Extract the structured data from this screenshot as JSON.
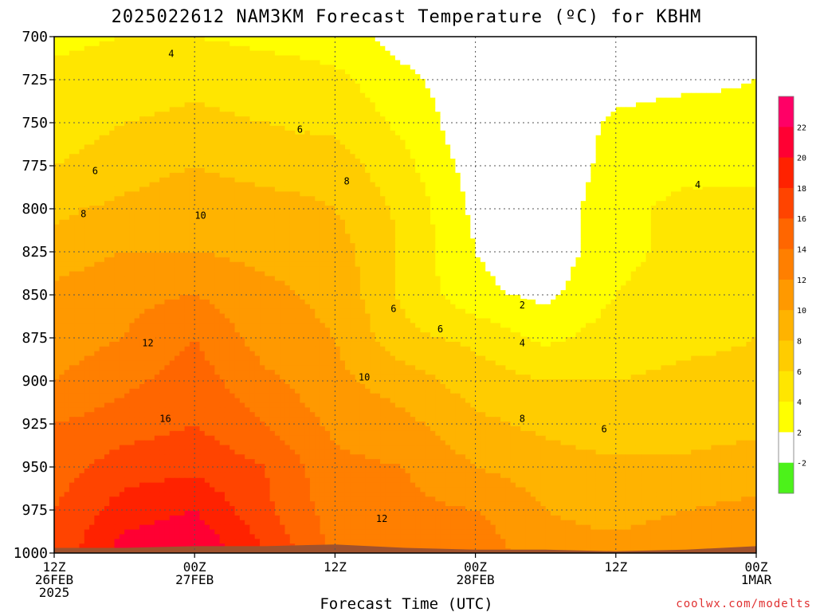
{
  "chart_data": {
    "type": "heatmap",
    "title": "2025022612 NAM3KM Forecast Temperature (ºC) for KBHM",
    "xlabel": "Forecast Time (UTC)",
    "ylabel": "",
    "credit": "coolwx.com/modelts",
    "x_ticks": [
      {
        "hour": 0,
        "line1": "12Z",
        "line2": "26FEB",
        "line3": "2025"
      },
      {
        "hour": 12,
        "line1": "00Z",
        "line2": "27FEB",
        "line3": ""
      },
      {
        "hour": 24,
        "line1": "12Z",
        "line2": "",
        "line3": ""
      },
      {
        "hour": 36,
        "line1": "00Z",
        "line2": "28FEB",
        "line3": ""
      },
      {
        "hour": 48,
        "line1": "12Z",
        "line2": "",
        "line3": ""
      },
      {
        "hour": 60,
        "line1": "00Z",
        "line2": "1MAR",
        "line3": ""
      }
    ],
    "x_range_hours": [
      0,
      60
    ],
    "y_ticks": [
      700,
      725,
      750,
      775,
      800,
      825,
      850,
      875,
      900,
      925,
      950,
      975,
      1000
    ],
    "y_range": [
      700,
      1000
    ],
    "y_inverted": true,
    "grid": true,
    "colorbar": {
      "labels": [
        22,
        20,
        18,
        16,
        14,
        12,
        10,
        8,
        6,
        4,
        2,
        -2
      ],
      "bands": [
        {
          "min": -4,
          "max": -2,
          "color": "#4cf21a"
        },
        {
          "min": -2,
          "max": 2,
          "color": "#ffffff"
        },
        {
          "min": 2,
          "max": 4,
          "color": "#ffff00"
        },
        {
          "min": 4,
          "max": 6,
          "color": "#ffe600"
        },
        {
          "min": 6,
          "max": 8,
          "color": "#ffcc00"
        },
        {
          "min": 8,
          "max": 10,
          "color": "#ffb300"
        },
        {
          "min": 10,
          "max": 12,
          "color": "#ff9900"
        },
        {
          "min": 12,
          "max": 14,
          "color": "#ff7f00"
        },
        {
          "min": 14,
          "max": 16,
          "color": "#ff6600"
        },
        {
          "min": 16,
          "max": 18,
          "color": "#ff4400"
        },
        {
          "min": 18,
          "max": 20,
          "color": "#ff2200"
        },
        {
          "min": 20,
          "max": 22,
          "color": "#ff0033"
        },
        {
          "min": 22,
          "max": 24,
          "color": "#ff0066"
        }
      ]
    },
    "ground_color": "#a0522d",
    "ground_pressure": [
      [
        0,
        997
      ],
      [
        6,
        997
      ],
      [
        12,
        996
      ],
      [
        18,
        996
      ],
      [
        24,
        995
      ],
      [
        30,
        997
      ],
      [
        36,
        998
      ],
      [
        42,
        998
      ],
      [
        48,
        999
      ],
      [
        54,
        998
      ],
      [
        60,
        996
      ]
    ],
    "temperature_grid": {
      "hours": [
        0,
        6,
        12,
        18,
        24,
        30,
        36,
        42,
        48,
        54,
        60
      ],
      "pressures": [
        700,
        725,
        750,
        775,
        800,
        825,
        850,
        875,
        900,
        925,
        950,
        975,
        1000
      ],
      "values": [
        [
          3.5,
          4.0,
          4.0,
          3.5,
          3.0,
          1.0,
          0.0,
          0.0,
          0.5,
          1.0,
          1.0
        ],
        [
          4.5,
          5.0,
          5.5,
          5.0,
          4.5,
          2.5,
          0.5,
          0.0,
          1.0,
          1.5,
          2.0
        ],
        [
          5.0,
          6.0,
          6.5,
          6.0,
          5.5,
          3.5,
          0.5,
          0.0,
          2.5,
          3.0,
          2.5
        ],
        [
          6.0,
          7.0,
          8.0,
          7.0,
          7.0,
          4.5,
          1.0,
          0.0,
          3.0,
          3.5,
          3.5
        ],
        [
          7.5,
          8.5,
          9.5,
          9.0,
          8.0,
          5.5,
          1.5,
          0.5,
          3.5,
          4.5,
          4.5
        ],
        [
          9.0,
          10.0,
          10.0,
          9.5,
          9.0,
          5.5,
          2.0,
          0.5,
          3.5,
          4.5,
          5.0
        ],
        [
          10.5,
          11.5,
          12.0,
          10.5,
          9.5,
          5.5,
          2.5,
          1.5,
          4.0,
          5.0,
          5.5
        ],
        [
          11.0,
          12.0,
          14.0,
          11.0,
          10.0,
          6.5,
          5.5,
          3.5,
          5.0,
          5.5,
          6.0
        ],
        [
          12.0,
          13.5,
          15.0,
          12.5,
          10.5,
          9.0,
          7.0,
          6.0,
          6.0,
          6.5,
          6.5
        ],
        [
          14.0,
          15.0,
          16.0,
          14.0,
          11.5,
          10.5,
          8.5,
          7.5,
          6.5,
          7.0,
          7.5
        ],
        [
          15.0,
          17.0,
          17.5,
          16.0,
          12.5,
          12.0,
          10.0,
          9.0,
          8.5,
          8.5,
          9.0
        ],
        [
          16.0,
          19.0,
          20.0,
          16.5,
          13.0,
          12.5,
          12.0,
          10.0,
          9.5,
          10.0,
          10.5
        ],
        [
          16.5,
          21.0,
          22.0,
          18.0,
          13.5,
          13.5,
          13.5,
          10.5,
          10.5,
          11.0,
          11.0
        ]
      ]
    },
    "contour_labels": [
      {
        "text": "4",
        "hour": 10.0,
        "p": 710
      },
      {
        "text": "6",
        "hour": 21.0,
        "p": 754
      },
      {
        "text": "6",
        "hour": 3.5,
        "p": 778
      },
      {
        "text": "8",
        "hour": 25.0,
        "p": 784
      },
      {
        "text": "8",
        "hour": 2.5,
        "p": 803
      },
      {
        "text": "10",
        "hour": 12.5,
        "p": 804
      },
      {
        "text": "6",
        "hour": 29.0,
        "p": 858
      },
      {
        "text": "6",
        "hour": 33.0,
        "p": 870
      },
      {
        "text": "2",
        "hour": 40.0,
        "p": 856
      },
      {
        "text": "4",
        "hour": 40.0,
        "p": 878
      },
      {
        "text": "12",
        "hour": 8.0,
        "p": 878
      },
      {
        "text": "10",
        "hour": 26.5,
        "p": 898
      },
      {
        "text": "8",
        "hour": 40.0,
        "p": 922
      },
      {
        "text": "6",
        "hour": 47.0,
        "p": 928
      },
      {
        "text": "16",
        "hour": 9.5,
        "p": 922
      },
      {
        "text": "12",
        "hour": 28.0,
        "p": 980
      },
      {
        "text": "4",
        "hour": 55.0,
        "p": 786
      }
    ]
  }
}
